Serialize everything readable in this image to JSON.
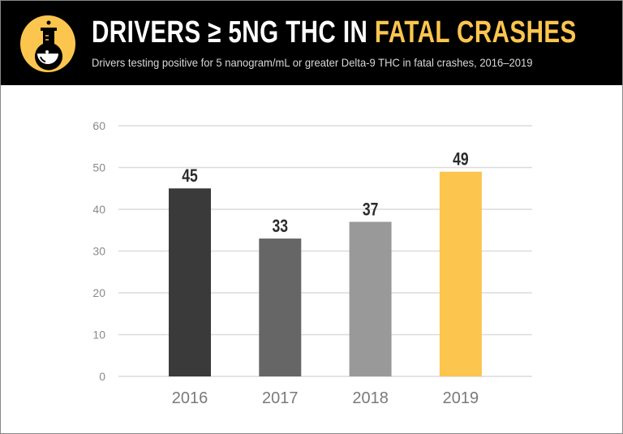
{
  "header": {
    "title_main": "DRIVERS ≥ 5NG THC IN ",
    "title_highlight": "FATAL CRASHES",
    "subtitle": "Drivers testing positive for 5 nanogram/mL or greater Delta-9 THC in fatal crashes, 2016–2019",
    "logo_icon": "flask-icon",
    "accent_color": "#fcc54e"
  },
  "chart_data": {
    "type": "bar",
    "categories": [
      "2016",
      "2017",
      "2018",
      "2019"
    ],
    "values": [
      45,
      33,
      37,
      49
    ],
    "data_labels": [
      "45",
      "33",
      "37",
      "49"
    ],
    "colors": [
      "#3a3a3a",
      "#666666",
      "#999999",
      "#fcc54e"
    ],
    "ylim": [
      0,
      60
    ],
    "yticks": [
      "0",
      "10",
      "20",
      "30",
      "40",
      "50",
      "60"
    ],
    "grid": true,
    "xlabel": "",
    "ylabel": ""
  }
}
